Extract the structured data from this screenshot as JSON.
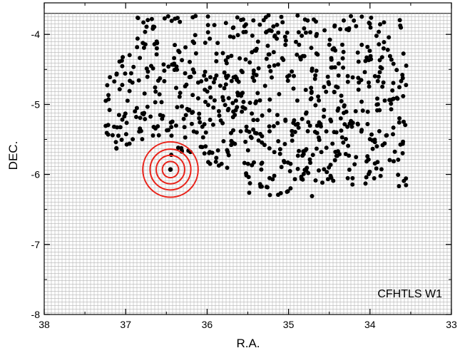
{
  "chart_data": {
    "type": "scatter",
    "xlabel": "R.A.",
    "ylabel": "DEC.",
    "annotation": "CFHTLS W1",
    "xlim": [
      38,
      33
    ],
    "ylim": [
      -8,
      -3.55
    ],
    "x_reversed": true,
    "x_ticks": [
      38,
      37,
      36,
      35,
      34,
      33
    ],
    "y_ticks": [
      -8,
      -7,
      -6,
      -5,
      -4
    ],
    "x_tick_labels": [
      "38",
      "37",
      "36",
      "35",
      "34",
      "33"
    ],
    "y_tick_labels": [
      "-8",
      "-7",
      "-6",
      "-5",
      "-4"
    ],
    "grid": true,
    "grid_region": {
      "x": [
        38,
        33
      ],
      "y": [
        -8,
        -3.7
      ]
    },
    "point_color": "#000000",
    "grid_color": "#b4b4b4",
    "highlight": {
      "color": "#e8231a",
      "center": [
        36.45,
        -5.93
      ],
      "ring_radii_ra": [
        0.1,
        0.175,
        0.25,
        0.34
      ]
    },
    "point_count": 720
  }
}
